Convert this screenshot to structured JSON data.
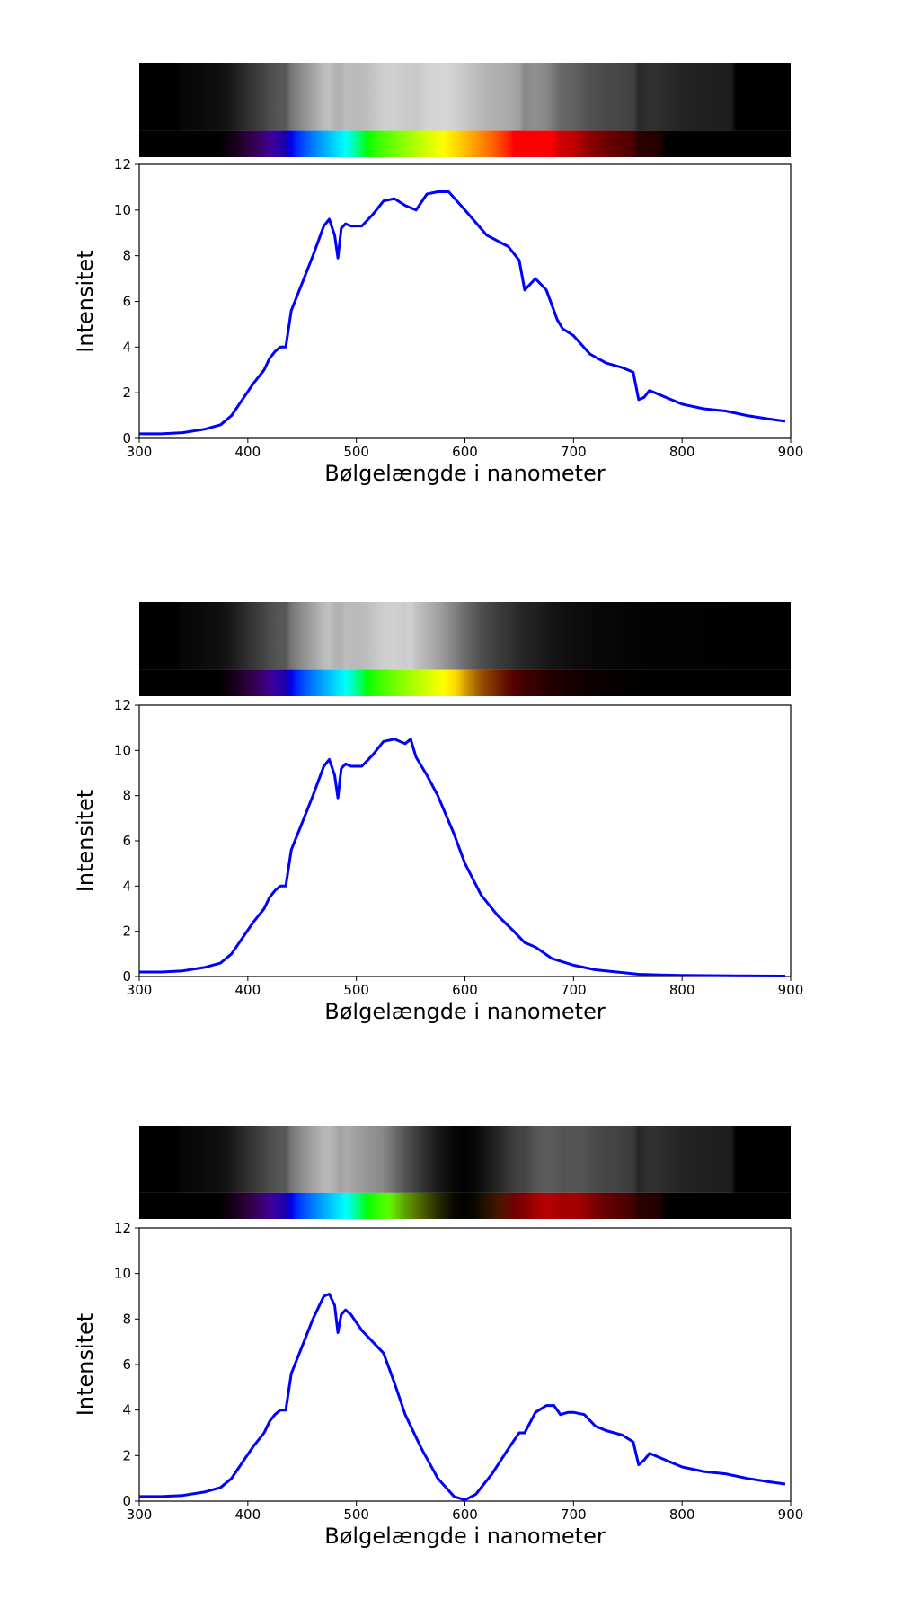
{
  "chart_data": [
    {
      "type": "line",
      "xlabel": "Bølgelængde i nanometer",
      "ylabel": "Intensitet",
      "xlim": [
        300,
        900
      ],
      "ylim": [
        0,
        12
      ],
      "xticks": [
        "300",
        "400",
        "500",
        "600",
        "700",
        "800",
        "900"
      ],
      "yticks": [
        "0",
        "2",
        "4",
        "6",
        "8",
        "10",
        "12"
      ],
      "grid": false,
      "line_color": "#0000ff",
      "x": [
        300,
        320,
        340,
        360,
        375,
        385,
        395,
        405,
        415,
        420,
        425,
        430,
        435,
        440,
        450,
        460,
        470,
        475,
        480,
        483,
        486,
        490,
        495,
        505,
        515,
        525,
        535,
        545,
        555,
        565,
        575,
        585,
        600,
        620,
        640,
        650,
        655,
        665,
        675,
        685,
        690,
        700,
        715,
        730,
        745,
        755,
        760,
        765,
        770,
        780,
        800,
        820,
        840,
        860,
        880,
        895
      ],
      "y": [
        0.2,
        0.2,
        0.25,
        0.4,
        0.6,
        1.0,
        1.7,
        2.4,
        3.0,
        3.5,
        3.8,
        4.0,
        4.0,
        5.6,
        6.8,
        8.0,
        9.3,
        9.6,
        8.9,
        7.9,
        9.2,
        9.4,
        9.3,
        9.3,
        9.8,
        10.4,
        10.5,
        10.2,
        10.0,
        10.7,
        10.8,
        10.8,
        10.0,
        8.9,
        8.4,
        7.8,
        6.5,
        7.0,
        6.5,
        5.2,
        4.8,
        4.5,
        3.7,
        3.3,
        3.1,
        2.9,
        1.7,
        1.8,
        2.1,
        1.9,
        1.5,
        1.3,
        1.2,
        1.0,
        0.85,
        0.75
      ]
    },
    {
      "type": "line",
      "xlabel": "Bølgelængde i nanometer",
      "ylabel": "Intensitet",
      "xlim": [
        300,
        900
      ],
      "ylim": [
        0,
        12
      ],
      "xticks": [
        "300",
        "400",
        "500",
        "600",
        "700",
        "800",
        "900"
      ],
      "yticks": [
        "0",
        "2",
        "4",
        "6",
        "8",
        "10",
        "12"
      ],
      "grid": false,
      "line_color": "#0000ff",
      "x": [
        300,
        320,
        340,
        360,
        375,
        385,
        395,
        405,
        415,
        420,
        425,
        430,
        435,
        440,
        450,
        460,
        470,
        475,
        480,
        483,
        486,
        490,
        495,
        505,
        515,
        525,
        535,
        545,
        550,
        555,
        565,
        575,
        590,
        600,
        615,
        630,
        645,
        655,
        665,
        680,
        700,
        720,
        740,
        760,
        780,
        800,
        850,
        895
      ],
      "y": [
        0.2,
        0.2,
        0.25,
        0.4,
        0.6,
        1.0,
        1.7,
        2.4,
        3.0,
        3.5,
        3.8,
        4.0,
        4.0,
        5.6,
        6.8,
        8.0,
        9.3,
        9.6,
        8.9,
        7.9,
        9.2,
        9.4,
        9.3,
        9.3,
        9.8,
        10.4,
        10.5,
        10.3,
        10.5,
        9.7,
        8.9,
        8.0,
        6.3,
        5.0,
        3.6,
        2.7,
        2.0,
        1.5,
        1.3,
        0.8,
        0.5,
        0.3,
        0.2,
        0.1,
        0.07,
        0.05,
        0.03,
        0.02
      ]
    },
    {
      "type": "line",
      "xlabel": "Bølgelængde i nanometer",
      "ylabel": "Intensitet",
      "xlim": [
        300,
        900
      ],
      "ylim": [
        0,
        12
      ],
      "xticks": [
        "300",
        "400",
        "500",
        "600",
        "700",
        "800",
        "900"
      ],
      "yticks": [
        "0",
        "2",
        "4",
        "6",
        "8",
        "10",
        "12"
      ],
      "grid": false,
      "line_color": "#0000ff",
      "x": [
        300,
        320,
        340,
        360,
        375,
        385,
        395,
        405,
        415,
        420,
        425,
        430,
        435,
        440,
        450,
        460,
        470,
        475,
        480,
        483,
        486,
        490,
        495,
        505,
        515,
        525,
        535,
        545,
        560,
        575,
        590,
        600,
        610,
        625,
        640,
        650,
        655,
        665,
        675,
        682,
        688,
        695,
        700,
        710,
        720,
        730,
        745,
        755,
        760,
        765,
        770,
        780,
        800,
        820,
        840,
        860,
        880,
        895
      ],
      "y": [
        0.2,
        0.2,
        0.25,
        0.4,
        0.6,
        1.0,
        1.7,
        2.4,
        3.0,
        3.5,
        3.8,
        4.0,
        4.0,
        5.6,
        6.8,
        8.0,
        9.0,
        9.1,
        8.6,
        7.4,
        8.2,
        8.4,
        8.2,
        7.5,
        7.0,
        6.5,
        5.2,
        3.8,
        2.3,
        1.0,
        0.2,
        0.05,
        0.3,
        1.2,
        2.3,
        3.0,
        3.0,
        3.9,
        4.2,
        4.2,
        3.8,
        3.9,
        3.9,
        3.8,
        3.3,
        3.1,
        2.9,
        2.6,
        1.6,
        1.8,
        2.1,
        1.9,
        1.5,
        1.3,
        1.2,
        1.0,
        0.85,
        0.75
      ]
    }
  ]
}
